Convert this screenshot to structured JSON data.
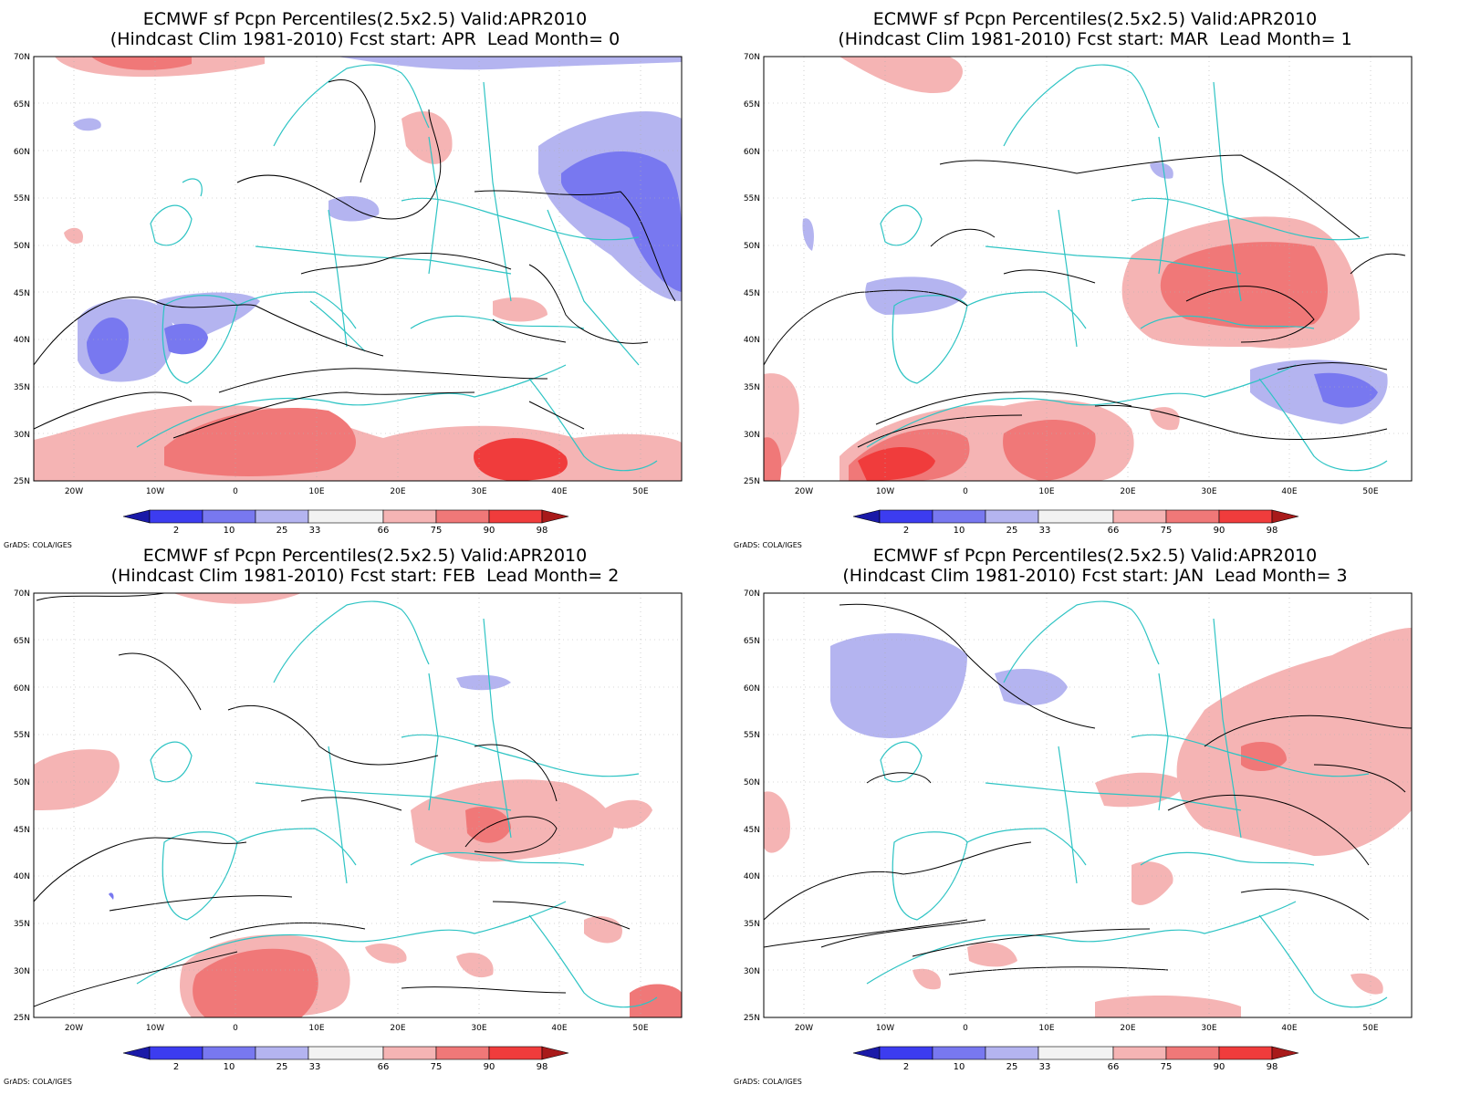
{
  "panels": [
    {
      "title_line1": "ECMWF sf Pcpn Percentiles(2.5x2.5) Valid:APR2010",
      "title_line2": "(Hindcast Clim 1981-2010) Fcst start: APR  Lead Month= 0"
    },
    {
      "title_line1": "ECMWF sf Pcpn Percentiles(2.5x2.5) Valid:APR2010",
      "title_line2": "(Hindcast Clim 1981-2010) Fcst start: MAR  Lead Month= 1"
    },
    {
      "title_line1": "ECMWF sf Pcpn Percentiles(2.5x2.5) Valid:APR2010",
      "title_line2": "(Hindcast Clim 1981-2010) Fcst start: FEB  Lead Month= 2"
    },
    {
      "title_line1": "ECMWF sf Pcpn Percentiles(2.5x2.5) Valid:APR2010",
      "title_line2": "(Hindcast Clim 1981-2010) Fcst start: JAN  Lead Month= 3"
    }
  ],
  "lat_labels": [
    "70N",
    "65N",
    "60N",
    "55N",
    "50N",
    "45N",
    "40N",
    "35N",
    "30N",
    "25N"
  ],
  "lon_labels": [
    "20W",
    "10W",
    "0",
    "10E",
    "20E",
    "30E",
    "40E",
    "50E"
  ],
  "colorbar": {
    "labels": [
      "2",
      "10",
      "25",
      "33",
      "66",
      "75",
      "90",
      "98"
    ],
    "colors": [
      "#1a1aa8",
      "#3c3cf0",
      "#7878f0",
      "#b4b4f0",
      "#f2f2f2",
      "#f5b4b4",
      "#f07878",
      "#f03c3c",
      "#a81a1a"
    ]
  },
  "credit": "GrADS: COLA/IGES",
  "colors": {
    "coast": "#2ec4c4",
    "contour": "#000000",
    "grid": "#b0b0b0"
  }
}
